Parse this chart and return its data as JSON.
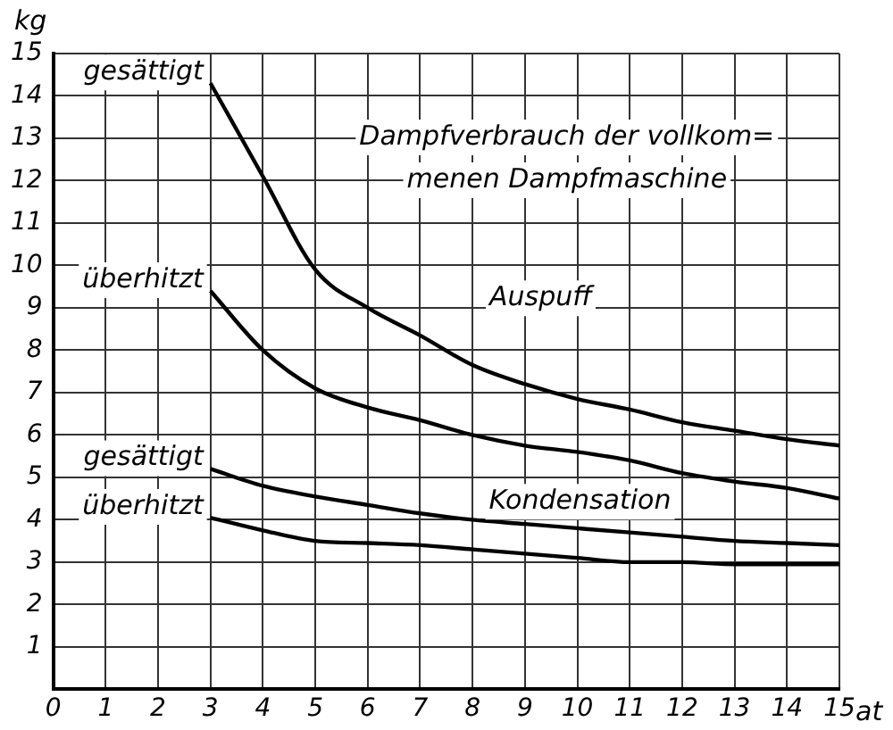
{
  "chart_data": {
    "type": "line",
    "title": "Dampfverbrauch der vollkom=\nmenen Dampfmaschine",
    "xlabel": "at",
    "ylabel": "kg",
    "x": [
      3,
      4,
      5,
      6,
      7,
      8,
      9,
      10,
      11,
      12,
      13,
      14,
      15
    ],
    "series": [
      {
        "name": "gesättigt",
        "color": "#000000",
        "values": [
          14.3,
          12.1,
          9.9,
          9.0,
          8.35,
          7.65,
          7.2,
          6.85,
          6.6,
          6.3,
          6.1,
          5.9,
          5.75
        ]
      },
      {
        "name": "überhitzt",
        "color": "#000000",
        "values": [
          9.4,
          8.0,
          7.1,
          6.65,
          6.35,
          6.0,
          5.75,
          5.6,
          5.4,
          5.1,
          4.9,
          4.75,
          4.5
        ]
      },
      {
        "name": "gesättigt",
        "color": "#000000",
        "values": [
          5.2,
          4.8,
          4.55,
          4.35,
          4.15,
          4.0,
          3.9,
          3.8,
          3.7,
          3.6,
          3.5,
          3.45,
          3.4
        ]
      },
      {
        "name": "überhitzt",
        "color": "#000000",
        "values": [
          4.05,
          3.75,
          3.5,
          3.45,
          3.4,
          3.3,
          3.2,
          3.1,
          3.0,
          3.0,
          2.95,
          2.95,
          2.95
        ]
      }
    ],
    "annotations": [
      "Auspuff",
      "Kondensation"
    ],
    "xlim": [
      0,
      15
    ],
    "xticks": [
      0,
      1,
      2,
      3,
      4,
      5,
      6,
      7,
      8,
      9,
      10,
      11,
      12,
      13,
      14,
      15
    ],
    "ylim": [
      0,
      15
    ],
    "yticks": [
      {
        "value": 0,
        "label": null
      },
      1,
      2,
      3,
      4,
      5,
      6,
      7,
      8,
      9,
      10,
      11,
      12,
      13,
      14,
      15
    ],
    "grid": true,
    "legend": false,
    "marker": "none",
    "line_style": "solid"
  }
}
